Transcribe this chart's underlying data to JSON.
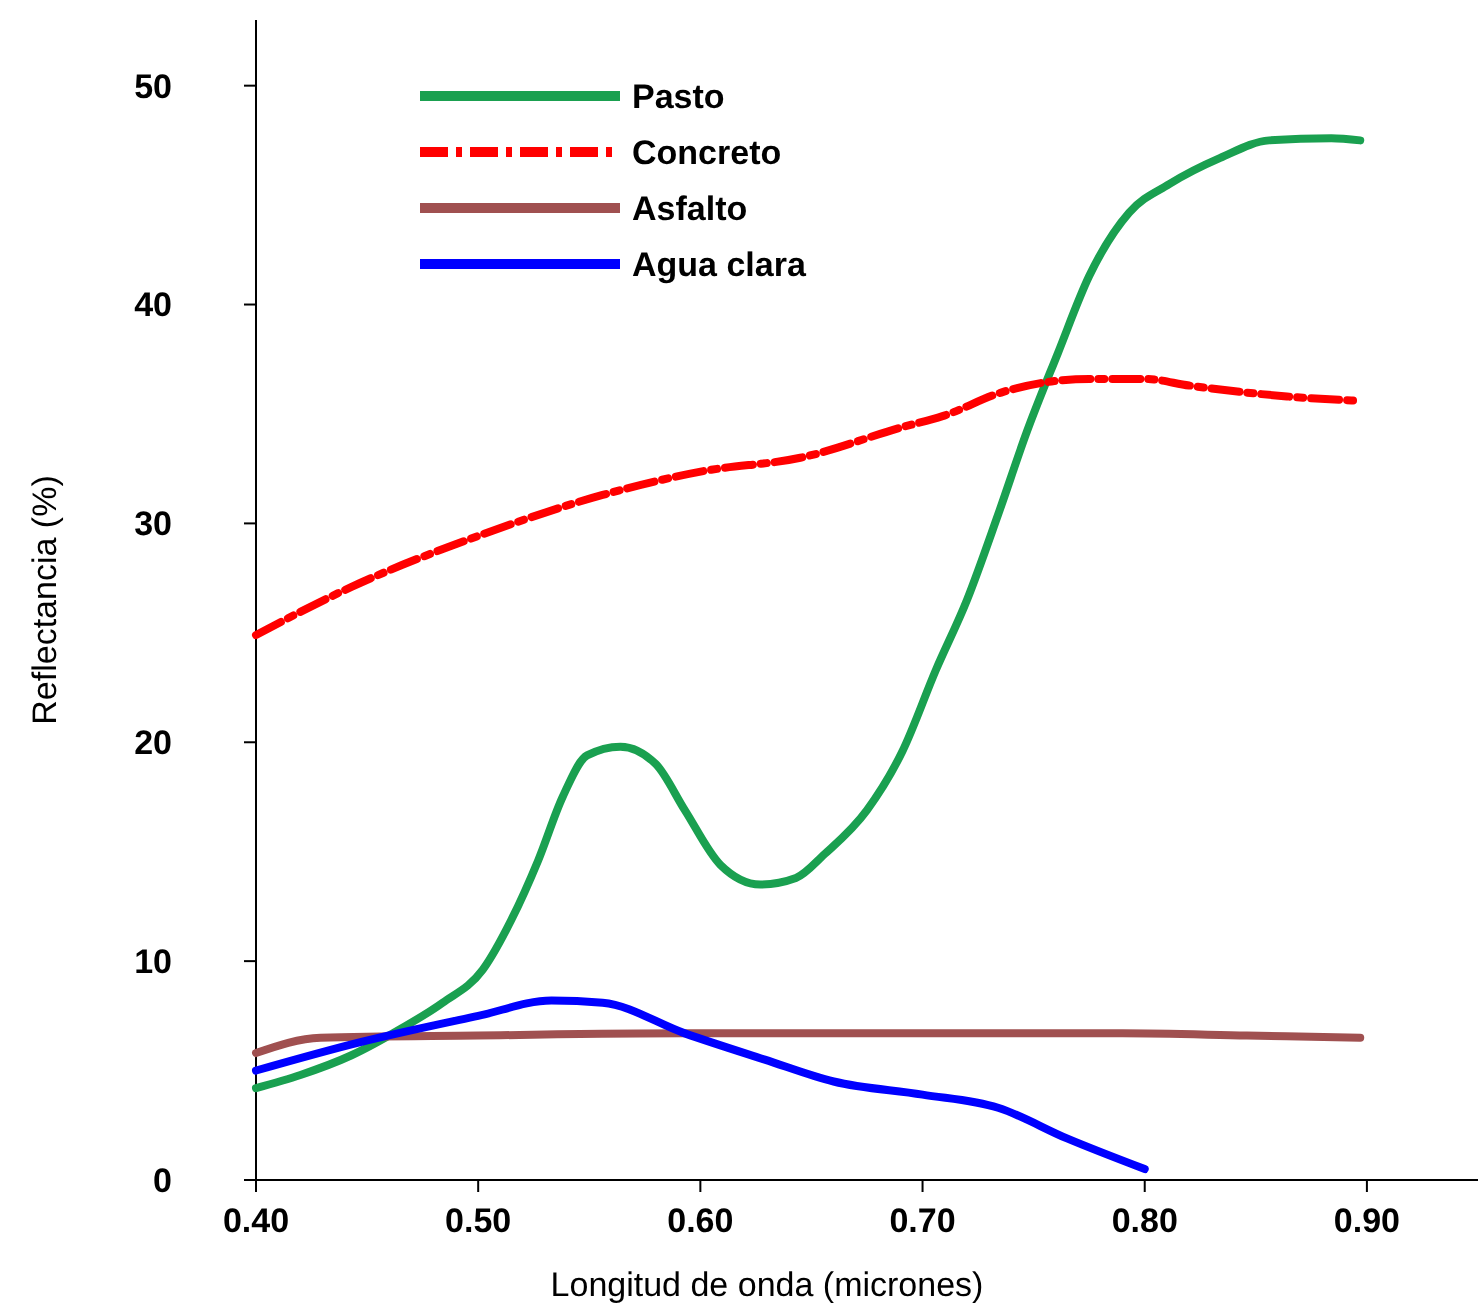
{
  "chart_data": {
    "type": "line",
    "xlabel": "Longitud de onda (micrones)",
    "ylabel": "Reflectancia (%)",
    "xlim": [
      0.4,
      0.95
    ],
    "ylim": [
      0,
      53
    ],
    "xticks": [
      {
        "value": 0.4,
        "label": "0.40"
      },
      {
        "value": 0.5,
        "label": "0.50"
      },
      {
        "value": 0.6,
        "label": "0.60"
      },
      {
        "value": 0.7,
        "label": "0.70"
      },
      {
        "value": 0.8,
        "label": "0.80"
      },
      {
        "value": 0.9,
        "label": "0.90"
      }
    ],
    "yticks": [
      0,
      10,
      20,
      30,
      40,
      50
    ],
    "grid": false,
    "legend": "top left",
    "series": [
      {
        "name": "Pasto",
        "color": "#1aa050",
        "line_style": "solid",
        "x": [
          0.4,
          0.42,
          0.443,
          0.465,
          0.484,
          0.502,
          0.515,
          0.527,
          0.538,
          0.549,
          0.564,
          0.58,
          0.593,
          0.609,
          0.627,
          0.643,
          0.656,
          0.675,
          0.691,
          0.706,
          0.72,
          0.734,
          0.747,
          0.761,
          0.775,
          0.793,
          0.811,
          0.834,
          0.856,
          0.884,
          0.897
        ],
        "values": [
          4.2,
          4.8,
          5.7,
          6.9,
          8.1,
          9.6,
          11.9,
          14.6,
          17.5,
          19.4,
          19.8,
          19,
          16.9,
          14.4,
          13.5,
          13.8,
          14.9,
          16.9,
          19.6,
          23.3,
          26.5,
          30.4,
          34.2,
          37.8,
          41.3,
          44.2,
          45.5,
          46.7,
          47.5,
          47.6,
          47.5
        ]
      },
      {
        "name": "Concreto",
        "color": "#ff0000",
        "line_style": "dashed",
        "x": [
          0.4,
          0.443,
          0.502,
          0.556,
          0.602,
          0.645,
          0.691,
          0.709,
          0.736,
          0.775,
          0.8,
          0.82,
          0.864,
          0.897
        ],
        "values": [
          24.9,
          27.1,
          29.5,
          31.3,
          32.4,
          33,
          34.4,
          34.9,
          36,
          36.6,
          36.6,
          36.3,
          35.8,
          35.6
        ]
      },
      {
        "name": "Asfalto",
        "color": "#a05050",
        "line_style": "solid",
        "x": [
          0.4,
          0.429,
          0.5,
          0.593,
          0.79,
          0.846,
          0.897
        ],
        "values": [
          5.8,
          6.5,
          6.6,
          6.7,
          6.7,
          6.6,
          6.5
        ]
      },
      {
        "name": "Agua clara",
        "color": "#0000ff",
        "line_style": "solid",
        "x": [
          0.4,
          0.447,
          0.5,
          0.533,
          0.556,
          0.593,
          0.629,
          0.66,
          0.7,
          0.734,
          0.765,
          0.8
        ],
        "values": [
          5,
          6.3,
          7.5,
          8.2,
          8.1,
          6.7,
          5.5,
          4.5,
          3.9,
          3.3,
          1.9,
          0.5
        ]
      }
    ]
  }
}
